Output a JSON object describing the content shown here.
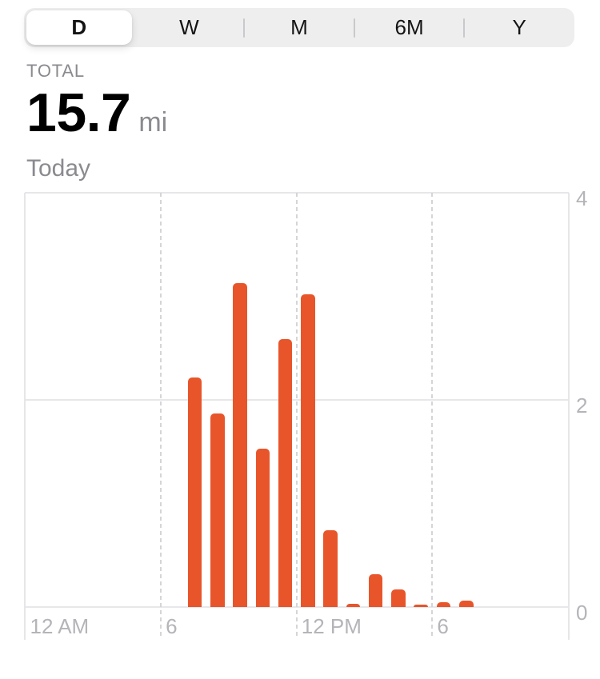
{
  "time_range_control": {
    "options": [
      {
        "label": "D",
        "selected": true
      },
      {
        "label": "W",
        "selected": false
      },
      {
        "label": "M",
        "selected": false
      },
      {
        "label": "6M",
        "selected": false
      },
      {
        "label": "Y",
        "selected": false
      }
    ]
  },
  "summary": {
    "total_label": "TOTAL",
    "total_value": "15.7",
    "total_unit": "mi",
    "period_label": "Today"
  },
  "chart_data": {
    "type": "bar",
    "x_unit": "hour-of-day",
    "x_axis": {
      "range_hours": [
        0,
        24
      ],
      "tick_labels": [
        {
          "hour": 0,
          "label": "12 AM"
        },
        {
          "hour": 6,
          "label": "6"
        },
        {
          "hour": 12,
          "label": "12 PM"
        },
        {
          "hour": 18,
          "label": "6"
        }
      ],
      "dashed_gridline_hours": [
        6,
        12,
        18
      ]
    },
    "y_axis": {
      "ticks": [
        0,
        2,
        4
      ],
      "ylim": [
        0,
        4
      ],
      "side": "right",
      "unit": "mi"
    },
    "series": [
      {
        "name": "distance",
        "color": "#E8552B",
        "points": [
          {
            "hour": 7,
            "value": 2.22
          },
          {
            "hour": 8,
            "value": 1.87
          },
          {
            "hour": 9,
            "value": 3.13
          },
          {
            "hour": 10,
            "value": 1.53
          },
          {
            "hour": 11,
            "value": 2.59
          },
          {
            "hour": 12,
            "value": 3.02
          },
          {
            "hour": 13,
            "value": 0.74
          },
          {
            "hour": 14,
            "value": 0.03
          },
          {
            "hour": 15,
            "value": 0.32
          },
          {
            "hour": 16,
            "value": 0.17
          },
          {
            "hour": 17,
            "value": 0.02
          },
          {
            "hour": 18,
            "value": 0.05
          },
          {
            "hour": 19,
            "value": 0.06
          }
        ]
      }
    ]
  },
  "colors": {
    "bar": "#E8552B",
    "axis_text": "#B4B4B9",
    "secondary_text": "#8A8A8F",
    "control_bg": "#EEEEEF",
    "gridline": "#E7E7EA",
    "dashed_gridline": "#D5D5D8"
  }
}
